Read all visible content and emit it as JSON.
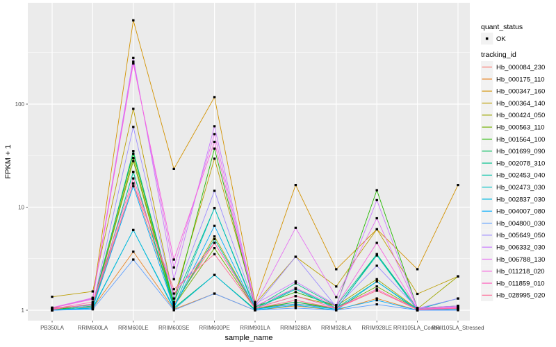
{
  "figure": {
    "background": "#FFFFFF",
    "panel_bg": "#EBEBEB",
    "grid_color": "#FFFFFF",
    "tick_color": "#333333",
    "point_color": "#000000",
    "axis_text_color": "#4D4D4D",
    "legend_key_bg": "#F2F2F2"
  },
  "legend": {
    "quant_status_title": "quant_status",
    "quant_ok_label": "OK",
    "tracking_id_title": "tracking_id"
  },
  "chart_data": {
    "type": "line",
    "title": "",
    "xlabel": "sample_name",
    "ylabel": "FPKM + 1",
    "y_scale": "log10",
    "ylim": [
      0.8,
      950
    ],
    "y_major_ticks": [
      1,
      10,
      100
    ],
    "y_minor_ticks": [
      3.162,
      31.62,
      316.2
    ],
    "grid": true,
    "legend_position": "right",
    "marker": "black-point",
    "x_categories": [
      "PB350LA",
      "RRIM600LA",
      "RRIM600LE",
      "RRIM600SE",
      "RRIM600PE",
      "RRIM901LA",
      "RRIM928BA",
      "RRIM928LA",
      "RRIM928LE",
      "RRII105LA_Control",
      "RRII105LA_Stressed"
    ],
    "series": [
      {
        "name": "Hb_000084_230",
        "color": "#F8766D",
        "values": [
          1.02,
          1.08,
          17,
          1.15,
          4.5,
          1.05,
          1.15,
          1.05,
          1.55,
          1.02,
          1.05
        ]
      },
      {
        "name": "Hb_000175_110",
        "color": "#E88526",
        "values": [
          1.0,
          1.05,
          3.7,
          1.02,
          1.45,
          1.0,
          1.1,
          1.0,
          1.3,
          1.0,
          1.02
        ]
      },
      {
        "name": "Hb_000347_160",
        "color": "#D39200",
        "values": [
          1.05,
          1.3,
          650,
          23.5,
          117,
          1.2,
          16.4,
          2.5,
          6.1,
          2.5,
          16.4
        ]
      },
      {
        "name": "Hb_000364_140",
        "color": "#BB9D00",
        "values": [
          1.35,
          1.52,
          90,
          1.3,
          29.6,
          1.15,
          3.3,
          1.7,
          6.1,
          1.44,
          2.13
        ]
      },
      {
        "name": "Hb_000424_050",
        "color": "#9DA700",
        "values": [
          1.05,
          1.12,
          30,
          1.1,
          5.2,
          1.05,
          1.37,
          1.1,
          2.0,
          1.03,
          2.13
        ]
      },
      {
        "name": "Hb_000563_110",
        "color": "#72B000",
        "values": [
          1.0,
          1.1,
          28,
          1.1,
          4.0,
          1.04,
          1.2,
          1.05,
          1.7,
          1.02,
          1.1
        ]
      },
      {
        "name": "Hb_001564_100",
        "color": "#24B700",
        "values": [
          1.0,
          1.15,
          33,
          1.15,
          37,
          1.08,
          1.5,
          1.1,
          14.6,
          1.05,
          1.1
        ]
      },
      {
        "name": "Hb_001699_090",
        "color": "#00BC5C",
        "values": [
          1.0,
          1.05,
          22,
          1.05,
          2.2,
          1.02,
          1.2,
          1.02,
          3.5,
          1.0,
          1.05
        ]
      },
      {
        "name": "Hb_002078_310",
        "color": "#00C08B",
        "values": [
          1.0,
          1.1,
          35,
          1.2,
          9.8,
          1.06,
          1.82,
          1.1,
          3.5,
          1.04,
          1.1
        ]
      },
      {
        "name": "Hb_002453_040",
        "color": "#00C1A7",
        "values": [
          1.0,
          1.06,
          22,
          1.1,
          4.9,
          1.04,
          1.64,
          1.05,
          1.9,
          1.02,
          1.3
        ]
      },
      {
        "name": "Hb_002473_030",
        "color": "#00BFC4",
        "values": [
          1.0,
          1.05,
          6.0,
          1.05,
          9.8,
          1.02,
          1.6,
          1.03,
          3.4,
          1.0,
          1.06
        ]
      },
      {
        "name": "Hb_002837_030",
        "color": "#00B8E0",
        "values": [
          1.0,
          1.03,
          6.0,
          1.02,
          2.2,
          1.0,
          1.12,
          1.0,
          1.9,
          1.0,
          1.02
        ]
      },
      {
        "name": "Hb_004007_080",
        "color": "#00ACFC",
        "values": [
          1.0,
          1.05,
          16,
          1.05,
          6.6,
          1.02,
          1.15,
          1.02,
          1.25,
          1.0,
          1.05
        ]
      },
      {
        "name": "Hb_004800_030",
        "color": "#5E9FFF",
        "values": [
          1.0,
          1.02,
          3.1,
          1.0,
          1.45,
          1.0,
          1.05,
          1.0,
          1.14,
          1.0,
          1.0
        ]
      },
      {
        "name": "Hb_005649_050",
        "color": "#9E8CFF",
        "values": [
          1.03,
          1.12,
          60,
          1.3,
          14.4,
          1.08,
          3.3,
          1.08,
          2.7,
          1.04,
          1.3
        ]
      },
      {
        "name": "Hb_006332_030",
        "color": "#C97AFF",
        "values": [
          1.05,
          1.3,
          281,
          2.0,
          61,
          1.15,
          1.9,
          1.12,
          11.7,
          1.05,
          1.1
        ]
      },
      {
        "name": "Hb_006788_130",
        "color": "#E672F2",
        "values": [
          1.06,
          1.32,
          258,
          2.6,
          51,
          1.12,
          6.3,
          1.34,
          7.8,
          1.05,
          1.08
        ]
      },
      {
        "name": "Hb_011218_020",
        "color": "#F763DF",
        "values": [
          1.05,
          1.28,
          248,
          3.1,
          43,
          1.1,
          1.64,
          1.1,
          4.5,
          1.03,
          1.06
        ]
      },
      {
        "name": "Hb_011859_010",
        "color": "#FF62BD",
        "values": [
          1.03,
          1.2,
          19,
          1.45,
          4.5,
          1.05,
          1.37,
          1.05,
          1.6,
          1.02,
          1.05
        ]
      },
      {
        "name": "Hb_028995_020",
        "color": "#FF6B97",
        "values": [
          1.02,
          1.15,
          17,
          1.6,
          3.5,
          1.04,
          1.25,
          1.04,
          1.55,
          1.01,
          1.04
        ]
      }
    ]
  }
}
